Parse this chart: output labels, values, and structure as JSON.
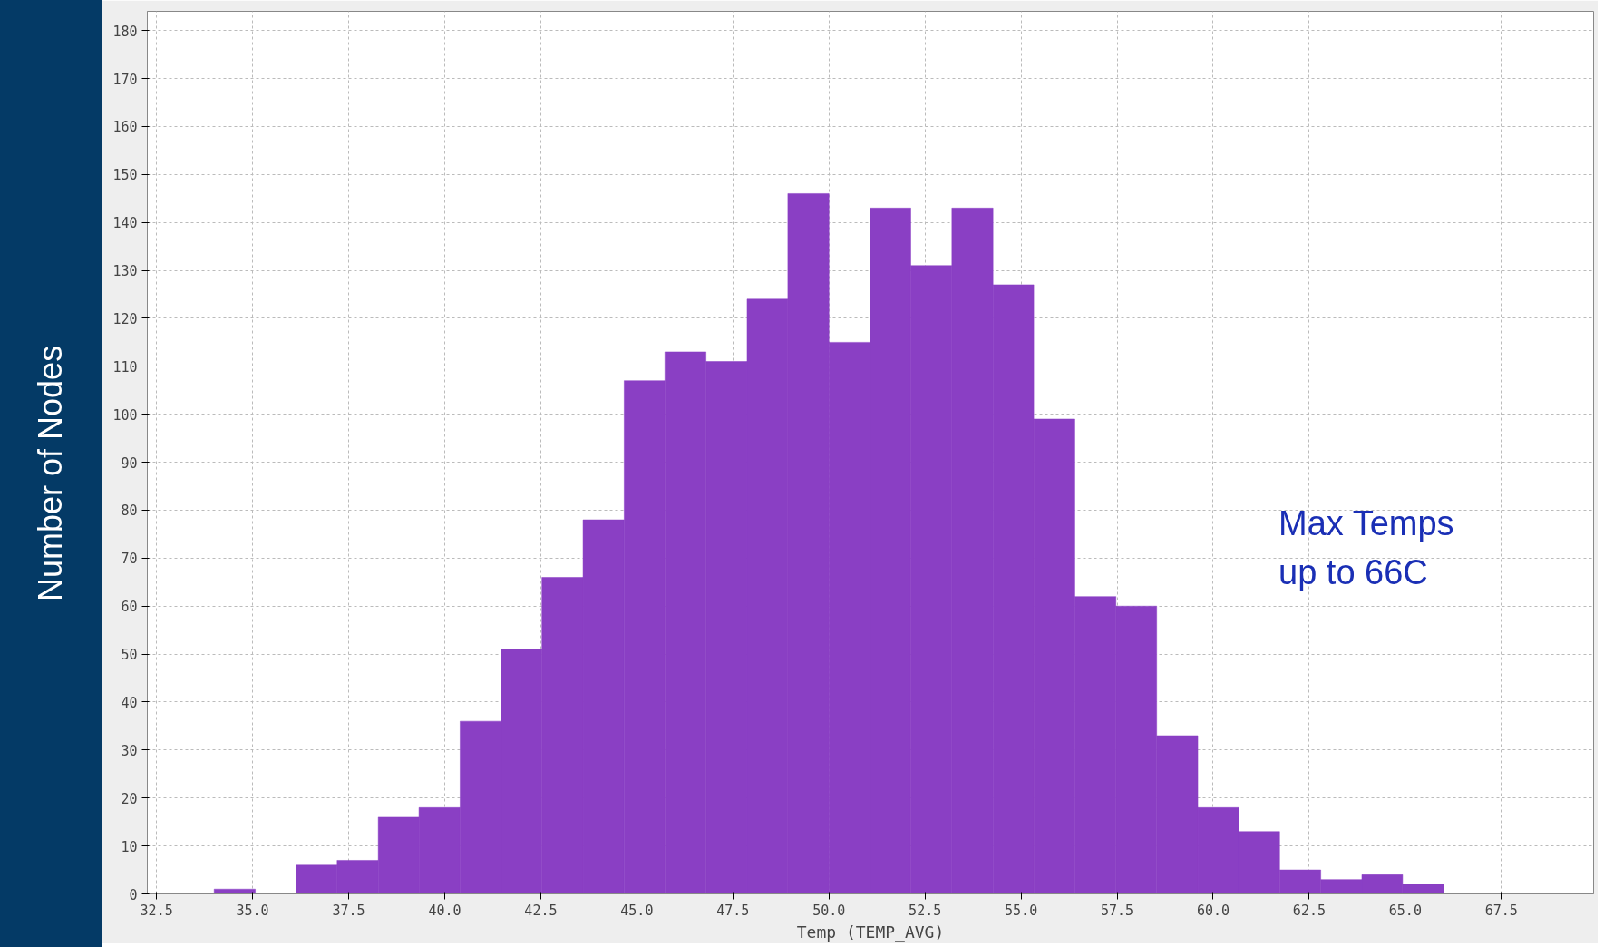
{
  "chart_data": {
    "type": "histogram",
    "xlabel": "Temp (TEMP_AVG)",
    "ylabel": "Number of Nodes",
    "annotations": [
      "Max Temps\nup to 66C"
    ],
    "bins": [
      34.0,
      35.07,
      36.13,
      37.2,
      38.27,
      39.33,
      40.4,
      41.47,
      42.53,
      43.6,
      44.67,
      45.73,
      46.8,
      47.87,
      48.93,
      50.0,
      51.07,
      52.13,
      53.2,
      54.27,
      55.33,
      56.4,
      57.47,
      58.53,
      59.6,
      60.67,
      61.73,
      62.8,
      63.87,
      64.93,
      66.0
    ],
    "values": [
      1,
      0,
      6,
      7,
      16,
      18,
      36,
      51,
      66,
      78,
      107,
      113,
      111,
      124,
      146,
      115,
      143,
      131,
      143,
      127,
      99,
      62,
      60,
      33,
      18,
      13,
      5,
      3,
      4,
      2
    ],
    "color": "#8a3fc4",
    "xlim": [
      32.26,
      69.9
    ],
    "ylim": [
      0,
      184
    ],
    "xticks": [
      {
        "value": 32.5,
        "label": "32.5"
      },
      {
        "value": 35,
        "label": "35.0"
      },
      {
        "value": 37.5,
        "label": "37.5"
      },
      {
        "value": 40,
        "label": "40.0"
      },
      {
        "value": 42.5,
        "label": "42.5"
      },
      {
        "value": 45,
        "label": "45.0"
      },
      {
        "value": 47.5,
        "label": "47.5"
      },
      {
        "value": 50,
        "label": "50.0"
      },
      {
        "value": 52.5,
        "label": "52.5"
      },
      {
        "value": 55,
        "label": "55.0"
      },
      {
        "value": 57.5,
        "label": "57.5"
      },
      {
        "value": 60,
        "label": "60.0"
      },
      {
        "value": 62.5,
        "label": "62.5"
      },
      {
        "value": 65,
        "label": "65.0"
      },
      {
        "value": 67.5,
        "label": "67.5"
      }
    ],
    "yticks": [
      0,
      10,
      20,
      30,
      40,
      50,
      60,
      70,
      80,
      90,
      100,
      110,
      120,
      130,
      140,
      150,
      160,
      170,
      180
    ],
    "grid": true
  }
}
